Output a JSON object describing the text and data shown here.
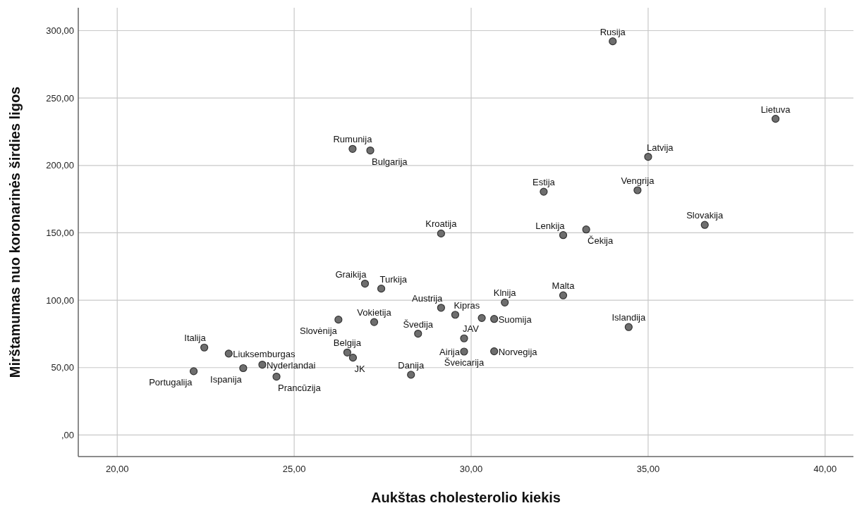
{
  "chart_data": {
    "type": "scatter",
    "xlabel": "Aukštas cholesterolio kiekis",
    "ylabel": "Mirštamumas nuo koronarinės širdies ligos",
    "xlim": [
      18.9,
      40.8
    ],
    "xticks": [
      {
        "value": 20,
        "label": "20,00"
      },
      {
        "value": 25,
        "label": "25,00"
      },
      {
        "value": 30,
        "label": "30,00"
      },
      {
        "value": 35,
        "label": "35,00"
      },
      {
        "value": 40,
        "label": "40,00"
      }
    ],
    "ylim": [
      -16,
      317
    ],
    "yticks": [
      {
        "value": 0,
        "label": ",00"
      },
      {
        "value": 50,
        "label": "50,00"
      },
      {
        "value": 100,
        "label": "100,00"
      },
      {
        "value": 150,
        "label": "150,00"
      },
      {
        "value": 200,
        "label": "200,00"
      },
      {
        "value": 250,
        "label": "250,00"
      },
      {
        "value": 300,
        "label": "300,00"
      }
    ],
    "grid": true,
    "marker": "circle",
    "series": [
      {
        "color": "#6e6e6e",
        "x": [
          34.0,
          38.6,
          26.65,
          27.15,
          35.0,
          32.05,
          34.7,
          36.6,
          29.15,
          32.6,
          33.25,
          27.0,
          27.46,
          29.15,
          29.55,
          30.95,
          32.6,
          27.26,
          26.25,
          28.5,
          30.65,
          29.8,
          34.45,
          22.46,
          23.15,
          26.5,
          26.66,
          29.8,
          30.65,
          24.1,
          23.56,
          22.16,
          24.5,
          28.3,
          30.3
        ],
        "values": [
          292.1,
          234.6,
          212.3,
          211.1,
          206.4,
          180.5,
          181.6,
          155.9,
          149.5,
          148.3,
          152.5,
          112.3,
          108.6,
          94.4,
          89.2,
          98.3,
          103.6,
          83.8,
          85.6,
          75.2,
          86.1,
          71.7,
          80.1,
          64.9,
          60.4,
          61.2,
          57.4,
          61.9,
          62.1,
          52.2,
          49.6,
          47.3,
          43.3,
          44.7,
          86.8
        ]
      }
    ],
    "annotations": [
      {
        "text": "Rusija",
        "x": 34.0,
        "y": 292.1
      },
      {
        "text": "Lietuva",
        "x": 38.6,
        "y": 234.6
      },
      {
        "text": "Rumunija",
        "x": 26.65,
        "y": 212.3
      },
      {
        "text": "Bulgarija",
        "x": 27.15,
        "y": 211.1
      },
      {
        "text": "Latvija",
        "x": 35.0,
        "y": 206.4
      },
      {
        "text": "Estija",
        "x": 32.05,
        "y": 180.5
      },
      {
        "text": "Vengrija",
        "x": 34.7,
        "y": 181.6
      },
      {
        "text": "Slovakija",
        "x": 36.6,
        "y": 155.9
      },
      {
        "text": "Kroatija",
        "x": 29.15,
        "y": 149.5
      },
      {
        "text": "Lenkija",
        "x": 32.6,
        "y": 148.3
      },
      {
        "text": "Čekija",
        "x": 33.25,
        "y": 152.5
      },
      {
        "text": "Graikija",
        "x": 27.0,
        "y": 112.3
      },
      {
        "text": "Turkija",
        "x": 27.46,
        "y": 108.6
      },
      {
        "text": "Austrija",
        "x": 29.15,
        "y": 94.4
      },
      {
        "text": "Kipras",
        "x": 29.55,
        "y": 89.2
      },
      {
        "text": "Klnija",
        "x": 30.95,
        "y": 98.3
      },
      {
        "text": "Malta",
        "x": 32.6,
        "y": 103.6
      },
      {
        "text": "Vokietija",
        "x": 27.26,
        "y": 83.8
      },
      {
        "text": "Slovėnija",
        "x": 26.25,
        "y": 85.6
      },
      {
        "text": "Švedija",
        "x": 28.5,
        "y": 75.2
      },
      {
        "text": "Suomija",
        "x": 30.65,
        "y": 86.1
      },
      {
        "text": "JAV",
        "x": 29.8,
        "y": 71.7
      },
      {
        "text": "Islandija",
        "x": 34.45,
        "y": 80.1
      },
      {
        "text": "Italija",
        "x": 22.46,
        "y": 64.9
      },
      {
        "text": "Liuksemburgas",
        "x": 23.15,
        "y": 60.4
      },
      {
        "text": "Belgija",
        "x": 26.5,
        "y": 61.2
      },
      {
        "text": "JK",
        "x": 26.66,
        "y": 57.4
      },
      {
        "text": "Airija",
        "x": 29.8,
        "y": 61.9
      },
      {
        "text": "Norvegija",
        "x": 30.65,
        "y": 62.1
      },
      {
        "text": "Šveicarija",
        "x": 29.8,
        "y": 61.9
      },
      {
        "text": "Nyderlandai",
        "x": 24.1,
        "y": 52.2
      },
      {
        "text": "Ispanija",
        "x": 23.56,
        "y": 49.6
      },
      {
        "text": "Portugalija",
        "x": 22.16,
        "y": 47.3
      },
      {
        "text": "Prancūzija",
        "x": 24.5,
        "y": 43.3
      },
      {
        "text": "Danija",
        "x": 28.3,
        "y": 44.7
      }
    ]
  }
}
